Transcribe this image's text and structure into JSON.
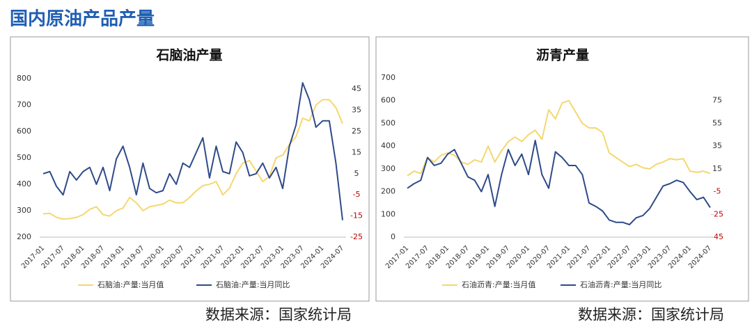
{
  "title": "国内原油产品产量",
  "chart_data": [
    {
      "type": "line",
      "title": "石脑油产量",
      "source": "数据来源：国家统计局",
      "categories": [
        "2017-01",
        null,
        null,
        "2017-07",
        null,
        null,
        "2018-01",
        null,
        null,
        "2018-07",
        null,
        null,
        "2019-01",
        null,
        null,
        "2019-07",
        null,
        null,
        "2020-01",
        null,
        null,
        "2020-07",
        null,
        null,
        "2021-01",
        null,
        null,
        "2021-07",
        null,
        null,
        "2022-01",
        null,
        null,
        "2022-07",
        null,
        null,
        "2023-01",
        null,
        null,
        "2023-07",
        null,
        null,
        "2024-01",
        null,
        null,
        "2024-07"
      ],
      "ylim": [
        200,
        800
      ],
      "yticks": [
        200,
        300,
        400,
        500,
        600,
        700,
        800
      ],
      "y2lim": [
        -25,
        50
      ],
      "y2ticks": [
        -25,
        -15,
        -5,
        5,
        15,
        25,
        35,
        45
      ],
      "negative_tick_color": "#c00000",
      "series": [
        {
          "name": "石脑油:产量:当月值",
          "color": "#f5d76e",
          "values": [
            288,
            290,
            275,
            268,
            270,
            275,
            285,
            305,
            315,
            285,
            280,
            300,
            310,
            350,
            330,
            300,
            315,
            320,
            325,
            340,
            330,
            330,
            350,
            375,
            395,
            400,
            410,
            360,
            385,
            440,
            480,
            490,
            450,
            410,
            430,
            500,
            510,
            550,
            580,
            650,
            640,
            700,
            720,
            720,
            690,
            630
          ]
        },
        {
          "name": "石脑油:产量:当月同比",
          "color": "#2e4a8a",
          "axis": "y2",
          "values": [
            5,
            6,
            -1,
            -5,
            6,
            2,
            6,
            8,
            0,
            8,
            -3,
            12,
            18,
            8,
            -5,
            10,
            -2,
            -4,
            -3,
            5,
            0,
            10,
            8,
            15,
            22,
            3,
            18,
            6,
            5,
            20,
            15,
            4,
            5,
            10,
            3,
            8,
            -2,
            18,
            28,
            48,
            40,
            27,
            30,
            30,
            10,
            -17
          ]
        }
      ]
    },
    {
      "type": "line",
      "title": "沥青产量",
      "source": "数据来源：国家统计局",
      "categories": [
        "2017-01",
        null,
        null,
        "2017-07",
        null,
        null,
        "2018-01",
        null,
        null,
        "2018-07",
        null,
        null,
        "2019-01",
        null,
        null,
        "2019-07",
        null,
        null,
        "2020-01",
        null,
        null,
        "2020-07",
        null,
        null,
        "2021-01",
        null,
        null,
        "2021-07",
        null,
        null,
        "2022-01",
        null,
        null,
        "2022-07",
        null,
        null,
        "2023-01",
        null,
        null,
        "2023-07",
        null,
        null,
        "2024-01",
        null,
        null,
        "2024-07"
      ],
      "ylim": [
        0,
        700
      ],
      "yticks": [
        0,
        100,
        200,
        300,
        400,
        500,
        600,
        700
      ],
      "y2lim": [
        -45,
        95
      ],
      "y2ticks": [
        -45,
        -25,
        -5,
        15,
        35,
        55,
        75
      ],
      "negative_tick_color": "#c00000",
      "series": [
        {
          "name": "石油沥青:产量:当月值",
          "color": "#f5d76e",
          "values": [
            270,
            290,
            280,
            350,
            330,
            360,
            370,
            360,
            330,
            320,
            340,
            330,
            400,
            330,
            380,
            420,
            440,
            420,
            450,
            470,
            430,
            560,
            520,
            590,
            600,
            550,
            500,
            480,
            480,
            460,
            370,
            350,
            330,
            310,
            320,
            305,
            300,
            320,
            330,
            345,
            340,
            345,
            290,
            285,
            290,
            280
          ]
        },
        {
          "name": "石油沥青:产量:当月同比",
          "color": "#2e4a8a",
          "axis": "y2",
          "values": [
            -2,
            2,
            5,
            25,
            18,
            20,
            28,
            32,
            20,
            8,
            5,
            -5,
            10,
            -18,
            10,
            32,
            18,
            28,
            10,
            40,
            10,
            -2,
            30,
            25,
            18,
            18,
            10,
            -15,
            -18,
            -22,
            -30,
            -32,
            -32,
            -34,
            -28,
            -26,
            -20,
            -10,
            0,
            2,
            5,
            3,
            -5,
            -12,
            -10,
            -19
          ]
        }
      ]
    }
  ]
}
